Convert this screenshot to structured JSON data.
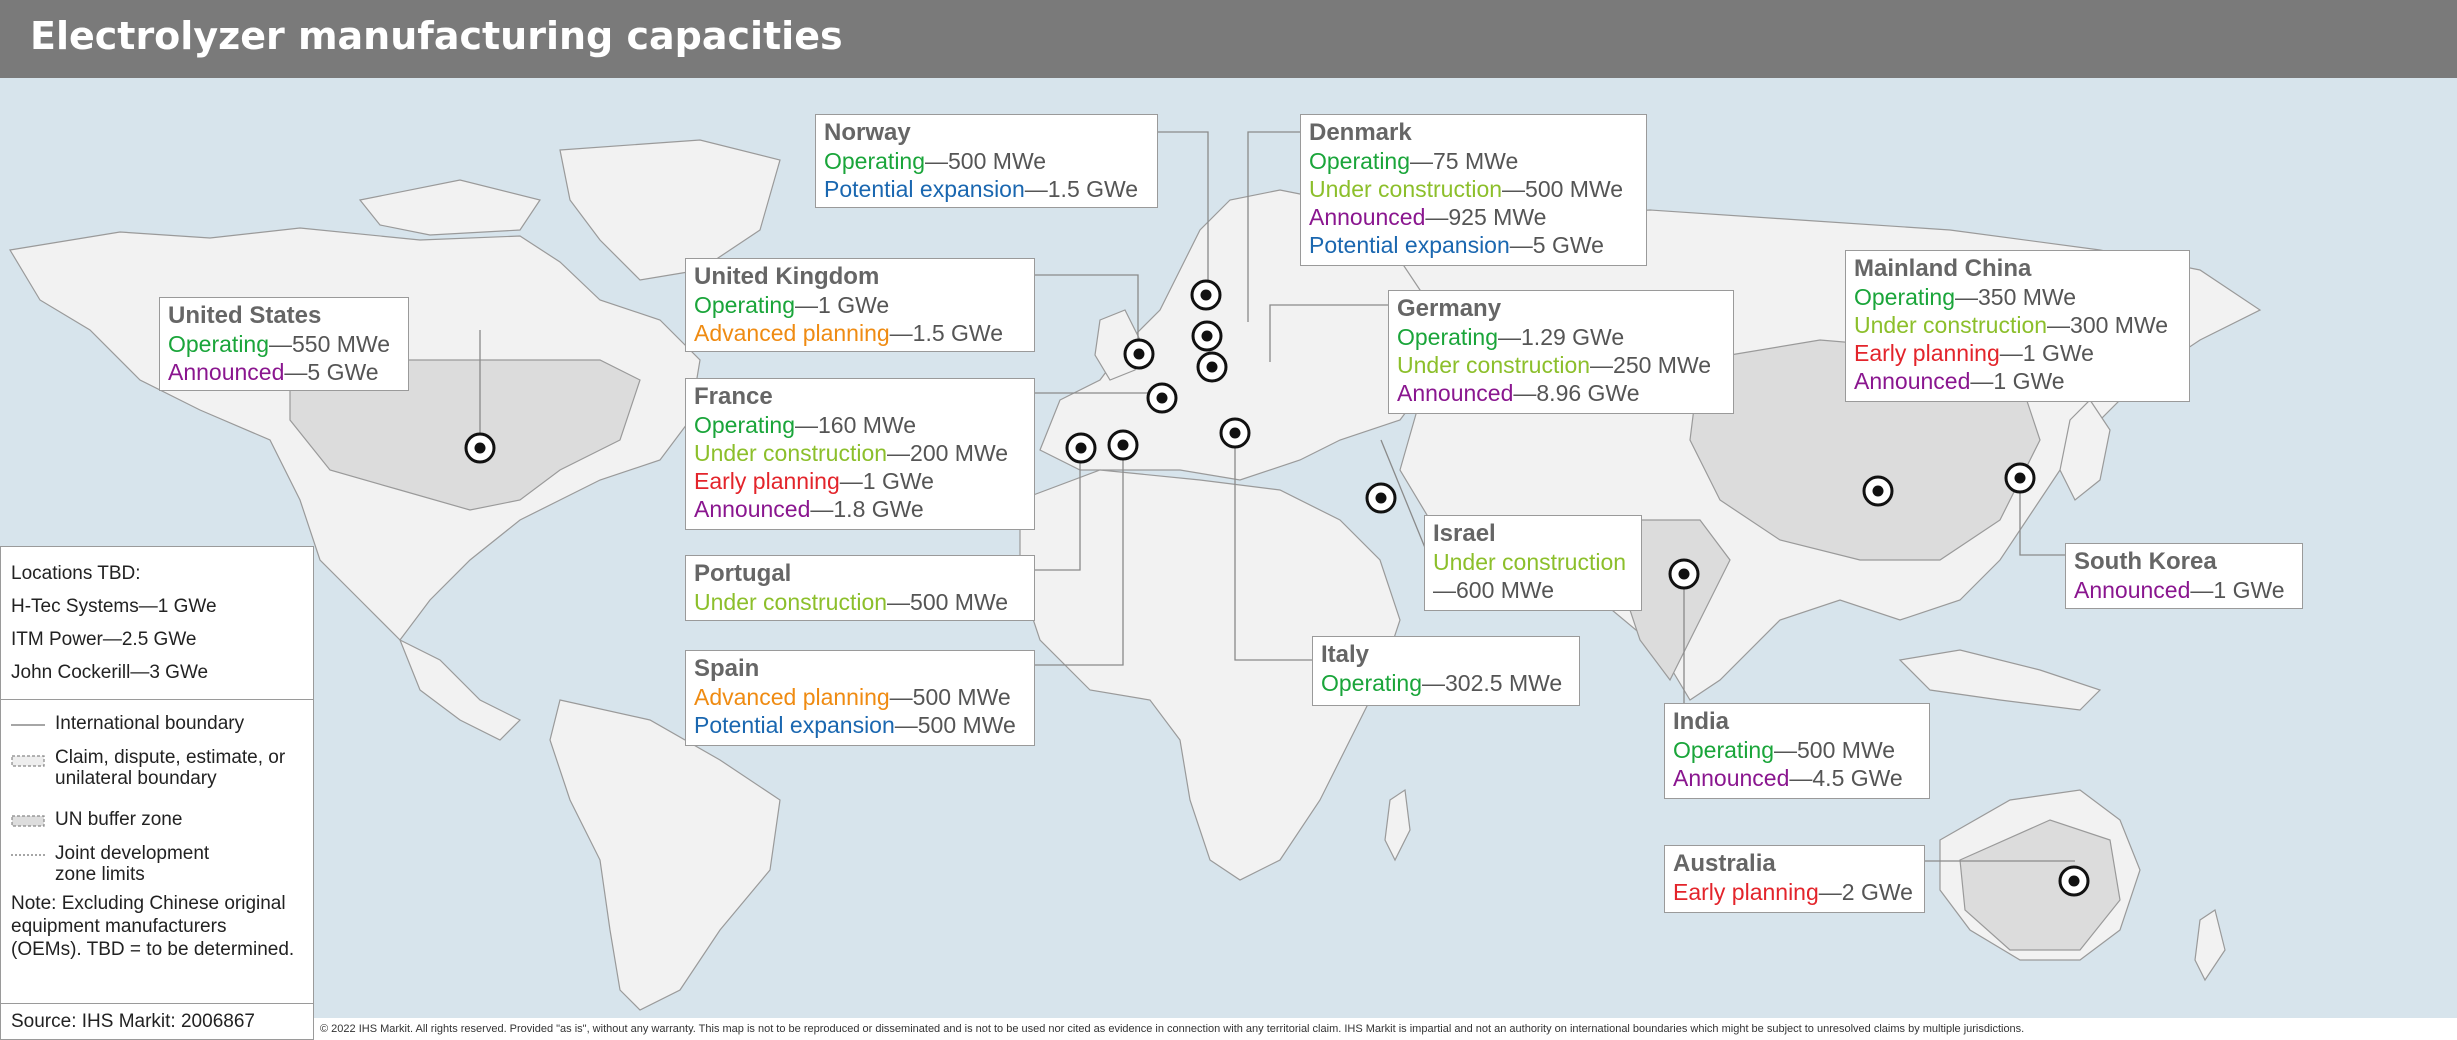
{
  "title": "Electrolyzer manufacturing capacities",
  "callouts": {
    "norway": {
      "name": "Norway",
      "l1_status": "Operating",
      "l1_value": "—500 MWe",
      "l2_status": "Potential expansion",
      "l2_value": "—1.5 GWe"
    },
    "denmark": {
      "name": "Denmark",
      "l1_status": "Operating",
      "l1_value": "—75 MWe",
      "l2_status": "Under construction",
      "l2_value": "—500 MWe",
      "l3_status": "Announced",
      "l3_value": "—925 MWe",
      "l4_status": "Potential expansion",
      "l4_value": "—5 GWe"
    },
    "uk": {
      "name": "United Kingdom",
      "l1_status": "Operating",
      "l1_value": "—1 GWe",
      "l2_status": "Advanced planning",
      "l2_value": "—1.5 GWe"
    },
    "us": {
      "name": "United States",
      "l1_status": "Operating",
      "l1_value": "—550 MWe",
      "l2_status": "Announced",
      "l2_value": "—5 GWe"
    },
    "germany": {
      "name": "Germany",
      "l1_status": "Operating",
      "l1_value": "—1.29 GWe",
      "l2_status": "Under construction",
      "l2_value": "—250 MWe",
      "l3_status": "Announced",
      "l3_value": "—8.96 GWe"
    },
    "china": {
      "name": "Mainland China",
      "l1_status": "Operating",
      "l1_value": "—350 MWe",
      "l2_status": "Under construction",
      "l2_value": "—300 MWe",
      "l3_status": "Early planning",
      "l3_value": "—1 GWe",
      "l4_status": "Announced",
      "l4_value": "—1 GWe"
    },
    "france": {
      "name": "France",
      "l1_status": "Operating",
      "l1_value": "—160 MWe",
      "l2_status": "Under construction",
      "l2_value": "—200 MWe",
      "l3_status": "Early planning",
      "l3_value": "—1 GWe",
      "l4_status": "Announced",
      "l4_value": "—1.8 GWe"
    },
    "israel": {
      "name": "Israel",
      "l1_status": "Under construction",
      "l2_value": "—600 MWe"
    },
    "south_korea": {
      "name": "South Korea",
      "l1_status": "Announced",
      "l1_value": "—1 GWe"
    },
    "portugal": {
      "name": "Portugal",
      "l1_status": "Under construction",
      "l1_value": "—500 MWe"
    },
    "spain": {
      "name": "Spain",
      "l1_status": "Advanced planning",
      "l1_value": "—500 MWe",
      "l2_status": "Potential expansion",
      "l2_value": "—500 MWe"
    },
    "italy": {
      "name": "Italy",
      "l1_status": "Operating",
      "l1_value": "—302.5 MWe"
    },
    "india": {
      "name": "India",
      "l1_status": "Operating",
      "l1_value": "—500 MWe",
      "l2_status": "Announced",
      "l2_value": "—4.5 GWe"
    },
    "australia": {
      "name": "Australia",
      "l1_status": "Early planning",
      "l1_value": "—2 GWe"
    }
  },
  "legend": {
    "tbd_heading": "Locations TBD:",
    "tbd_items": [
      "H-Tec Systems—1 GWe",
      "ITM Power—2.5 GWe",
      "John Cockerill—3 GWe"
    ],
    "boundary_items": [
      "International boundary",
      "Claim, dispute, estimate, or unilateral boundary",
      "UN buffer zone",
      "Joint development zone limits"
    ],
    "note": "Note: Excluding Chinese original equipment manufacturers (OEMs). TBD = to be determined.",
    "source": "Source: IHS Markit: 2006867"
  },
  "footer": "© 2022 IHS Markit. All rights reserved. Provided \"as is\", without any warranty. This map is not to be reproduced or disseminated and is not to be used nor cited as evidence in connection with any territorial claim. IHS Markit is impartial and not an authority on international boundaries which might be subject to unresolved claims by multiple jurisdictions.",
  "colors": {
    "operating": "#1aa53a",
    "under_construction": "#8cbf2b",
    "announced": "#8a168f",
    "potential_expansion": "#1a67b0",
    "advanced_planning": "#ef8b12",
    "early_planning": "#e3242b",
    "ocean": "#d7e4ec",
    "land": "#f2f2f2",
    "highlighted_land": "#dcdcdc",
    "title_bar": "#7a7a7a"
  },
  "markers": [
    "us-marker",
    "norway-marker",
    "denmark-marker",
    "uk-marker",
    "germany-marker",
    "france-marker",
    "portugal-marker",
    "spain-marker",
    "italy-marker",
    "israel-marker",
    "india-marker",
    "china-marker",
    "south-korea-marker",
    "australia-marker"
  ]
}
